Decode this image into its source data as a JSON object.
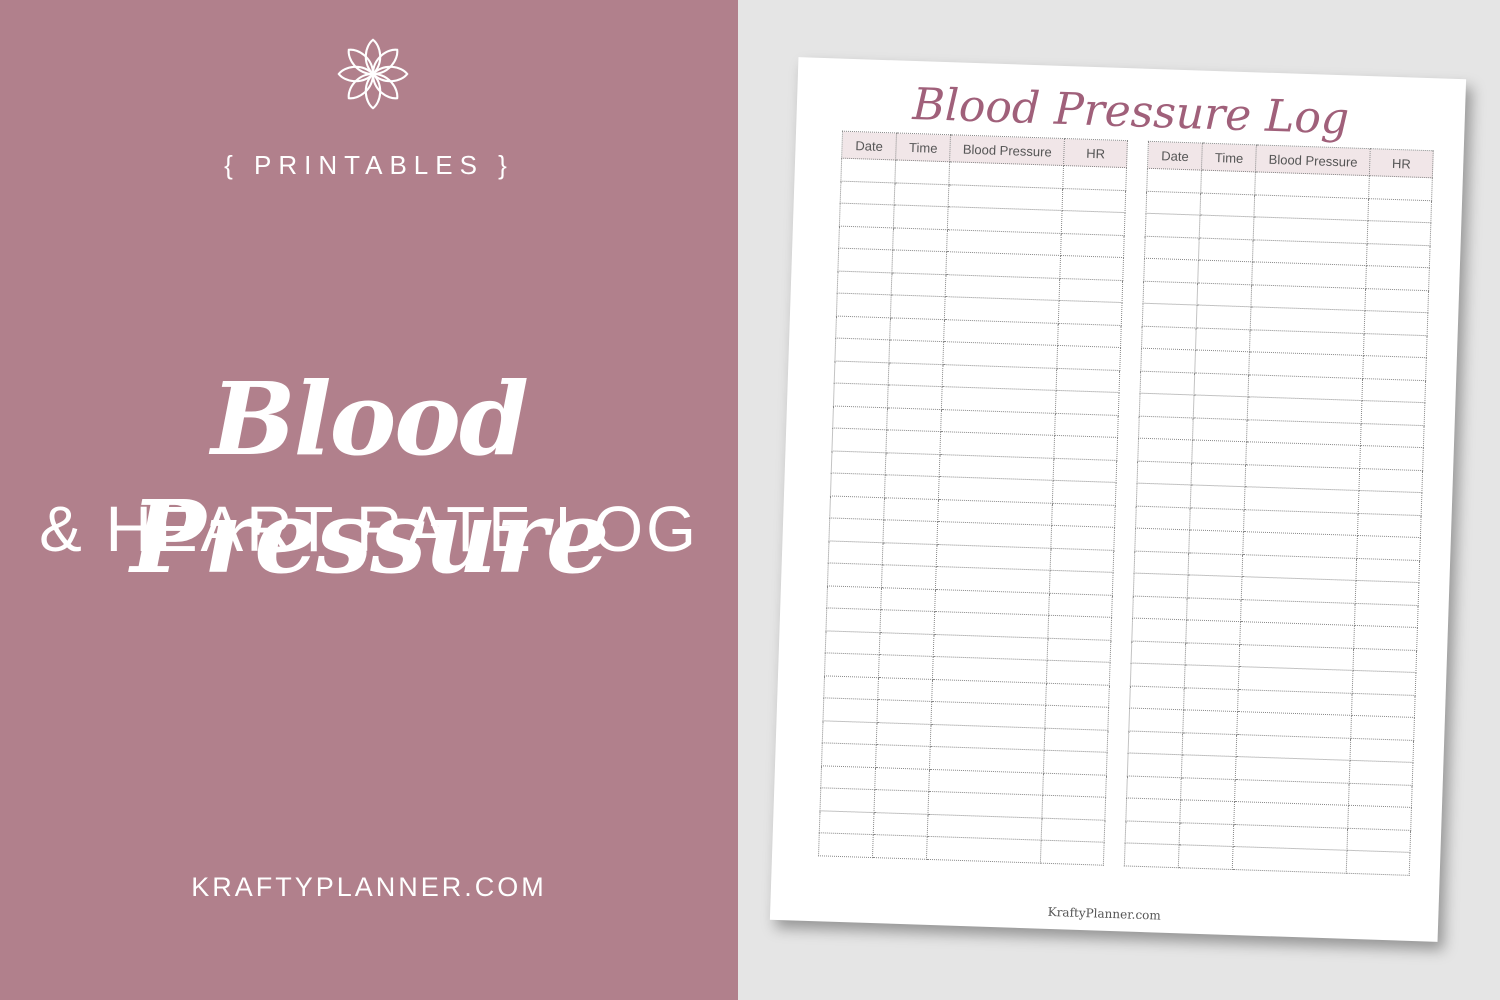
{
  "left_panel": {
    "background": "#b1808c",
    "logo_icon": "flower-icon",
    "category": "{ PRINTABLES }",
    "title_line1": "Blood Pressure",
    "title_line2": "& HEART RATE LOG",
    "website": "KRAFTYPLANNER.COM"
  },
  "sheet": {
    "title": "Blood Pressure Log",
    "columns": [
      "Date",
      "Time",
      "Blood Pressure",
      "HR"
    ],
    "header_color": "#f1e6e8",
    "title_color": "#a0607a",
    "footer": "KraftyPlanner.com"
  }
}
